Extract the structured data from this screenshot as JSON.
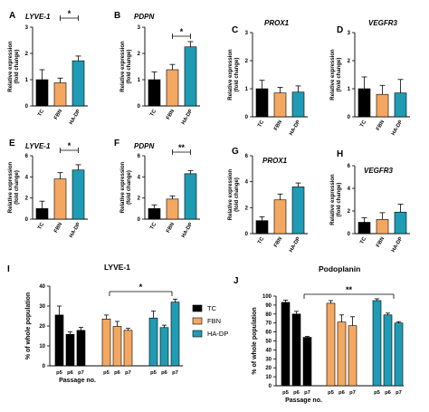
{
  "colors": {
    "TC": "#000000",
    "FBN": "#f4a760",
    "HA-DP": "#1f9bb3",
    "axis": "#000000",
    "errorbar": "#000000"
  },
  "labels": {
    "ylabel_main": "Relative expression",
    "ylabel_sub": "(fold change)",
    "ylabel_pop": "% of whole population",
    "xlabel_passage": "Passage no."
  },
  "chart_data": [
    {
      "panel": "A",
      "title": "LYVE-1",
      "type": "bar",
      "categories": [
        "TC",
        "FBN",
        "HA-DP"
      ],
      "values": [
        1.0,
        0.88,
        1.72
      ],
      "errors": [
        0.38,
        0.18,
        0.18
      ],
      "ylim": [
        0,
        3
      ],
      "yticks": [
        0,
        1,
        2,
        3
      ],
      "significance": [
        {
          "from": 1,
          "to": 2,
          "label": "*"
        }
      ]
    },
    {
      "panel": "B",
      "title": "PDPN",
      "type": "bar",
      "categories": [
        "TC",
        "FBN",
        "HA-DP"
      ],
      "values": [
        1.0,
        1.38,
        2.25
      ],
      "errors": [
        0.3,
        0.2,
        0.2
      ],
      "ylim": [
        0,
        3
      ],
      "yticks": [
        0,
        1,
        2,
        3
      ],
      "significance": [
        {
          "from": 1,
          "to": 2,
          "label": "*"
        }
      ]
    },
    {
      "panel": "C",
      "title": "PROX1",
      "type": "bar",
      "categories": [
        "TC",
        "FBN",
        "HA-DP"
      ],
      "values": [
        1.0,
        0.85,
        0.88
      ],
      "errors": [
        0.3,
        0.2,
        0.22
      ],
      "ylim": [
        0,
        3
      ],
      "yticks": [
        0,
        1,
        2,
        3
      ],
      "significance": []
    },
    {
      "panel": "D",
      "title": "VEGFR3",
      "type": "bar",
      "categories": [
        "TC",
        "FBN",
        "HA-DP"
      ],
      "values": [
        1.0,
        0.8,
        0.85
      ],
      "errors": [
        0.42,
        0.32,
        0.48
      ],
      "ylim": [
        0,
        3
      ],
      "yticks": [
        0,
        1,
        2,
        3
      ],
      "significance": []
    },
    {
      "panel": "E",
      "title": "LYVE-1",
      "type": "bar",
      "categories": [
        "TC",
        "FBN",
        "HA-DP"
      ],
      "values": [
        1.0,
        3.8,
        4.65
      ],
      "errors": [
        0.7,
        0.6,
        0.5
      ],
      "ylim": [
        0,
        6
      ],
      "yticks": [
        0,
        2,
        4,
        6
      ],
      "significance": [
        {
          "from": 1,
          "to": 2,
          "label": "*"
        }
      ]
    },
    {
      "panel": "F",
      "title": "PDPN",
      "type": "bar",
      "categories": [
        "TC",
        "FBN",
        "HA-DP"
      ],
      "values": [
        1.0,
        1.9,
        4.3
      ],
      "errors": [
        0.35,
        0.3,
        0.3
      ],
      "ylim": [
        0,
        6
      ],
      "yticks": [
        0,
        2,
        4,
        6
      ],
      "significance": [
        {
          "from": 1,
          "to": 2,
          "label": "**"
        }
      ]
    },
    {
      "panel": "G",
      "title": "PROX1",
      "type": "bar",
      "categories": [
        "TC",
        "FBN",
        "HA-DP"
      ],
      "values": [
        1.0,
        2.6,
        3.6
      ],
      "errors": [
        0.3,
        0.45,
        0.3
      ],
      "ylim": [
        0,
        6
      ],
      "yticks": [
        0,
        2,
        4,
        6
      ],
      "significance": []
    },
    {
      "panel": "H",
      "title": "VEGFR3",
      "type": "bar",
      "categories": [
        "TC",
        "FBN",
        "HA-DP"
      ],
      "values": [
        1.0,
        1.25,
        1.9
      ],
      "errors": [
        0.4,
        0.6,
        0.7
      ],
      "ylim": [
        0,
        6
      ],
      "yticks": [
        0,
        2,
        4,
        6
      ],
      "significance": []
    },
    {
      "panel": "I",
      "title": "LYVE-1",
      "type": "bar",
      "groups": [
        "TC",
        "FBN",
        "HA-DP"
      ],
      "subcategories": [
        "p5",
        "p6",
        "p7"
      ],
      "series": [
        {
          "name": "TC",
          "values": [
            25.5,
            15.8,
            17.8
          ],
          "errors": [
            4.5,
            1.2,
            1.5
          ]
        },
        {
          "name": "FBN",
          "values": [
            23.5,
            19.8,
            17.8
          ],
          "errors": [
            2.0,
            2.5,
            1.0
          ]
        },
        {
          "name": "HA-DP",
          "values": [
            24.0,
            19.2,
            32.0
          ],
          "errors": [
            3.5,
            1.2,
            1.5
          ]
        }
      ],
      "ylim": [
        0,
        40
      ],
      "yticks": [
        0,
        10,
        20,
        30,
        40
      ],
      "xlabel": "Passage no.",
      "legend": [
        "TC",
        "FBN",
        "HA-DP"
      ],
      "significance": [
        {
          "label": "*"
        }
      ]
    },
    {
      "panel": "J",
      "title": "Podoplanin",
      "type": "bar",
      "groups": [
        "TC",
        "FBN",
        "HA-DP"
      ],
      "subcategories": [
        "p5",
        "p6",
        "p7"
      ],
      "series": [
        {
          "name": "TC",
          "values": [
            93,
            80,
            54
          ],
          "errors": [
            2.5,
            3,
            1
          ]
        },
        {
          "name": "FBN",
          "values": [
            92,
            71,
            67
          ],
          "errors": [
            3,
            8,
            10
          ]
        },
        {
          "name": "HA-DP",
          "values": [
            95,
            79,
            70
          ],
          "errors": [
            2,
            2,
            1.5
          ]
        }
      ],
      "ylim": [
        0,
        100
      ],
      "yticks": [
        0,
        10,
        20,
        30,
        40,
        50,
        60,
        70,
        80,
        90,
        100
      ],
      "xlabel": "Passage no.",
      "significance": [
        {
          "label": "**"
        }
      ]
    }
  ]
}
